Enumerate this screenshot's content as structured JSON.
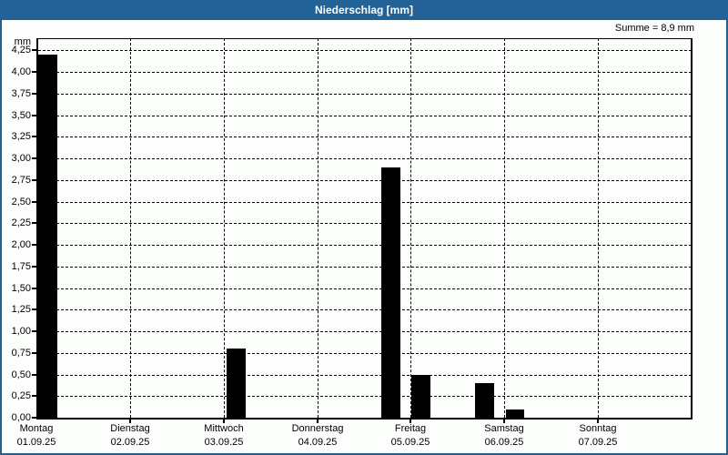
{
  "window": {
    "title": "Niederschlag [mm]",
    "summary": "Summe = 8,9 mm"
  },
  "colors": {
    "titlebar": "#226296",
    "border": "#226296",
    "background": "#fcfefc",
    "bar": "#000000",
    "grid": "#000000",
    "text": "#000000",
    "title_text": "#ffffff"
  },
  "chart_data": {
    "type": "bar",
    "title": "Niederschlag [mm]",
    "ylabel": "mm",
    "sum_label": "Summe = 8,9 mm",
    "total_mm": 8.9,
    "grid": "dashed",
    "ylim": [
      0,
      4.39
    ],
    "ytick_step": 0.25,
    "yticks": [
      {
        "value": 0.0,
        "label": "0,00"
      },
      {
        "value": 0.25,
        "label": "0,25"
      },
      {
        "value": 0.5,
        "label": "0,50"
      },
      {
        "value": 0.75,
        "label": "0,75"
      },
      {
        "value": 1.0,
        "label": "1,00"
      },
      {
        "value": 1.25,
        "label": "1,25"
      },
      {
        "value": 1.5,
        "label": "1,50"
      },
      {
        "value": 1.75,
        "label": "1,75"
      },
      {
        "value": 2.0,
        "label": "2,00"
      },
      {
        "value": 2.25,
        "label": "2,25"
      },
      {
        "value": 2.5,
        "label": "2,50"
      },
      {
        "value": 2.75,
        "label": "2,75"
      },
      {
        "value": 3.0,
        "label": "3,00"
      },
      {
        "value": 3.25,
        "label": "3,25"
      },
      {
        "value": 3.5,
        "label": "3,50"
      },
      {
        "value": 3.75,
        "label": "3,75"
      },
      {
        "value": 4.0,
        "label": "4,00"
      },
      {
        "value": 4.25,
        "label": "4,25"
      }
    ],
    "days": [
      {
        "name": "Montag",
        "date": "01.09.25"
      },
      {
        "name": "Dienstag",
        "date": "02.09.25"
      },
      {
        "name": "Mittwoch",
        "date": "03.09.25"
      },
      {
        "name": "Donnerstag",
        "date": "04.09.25"
      },
      {
        "name": "Freitag",
        "date": "05.09.25"
      },
      {
        "name": "Samstag",
        "date": "06.09.25"
      },
      {
        "name": "Sonntag",
        "date": "07.09.25"
      }
    ],
    "bars": [
      {
        "day": "Montag",
        "t": 0.019,
        "dur": 0.204,
        "value": 4.2
      },
      {
        "day": "Mittwoch",
        "t": 2.029,
        "dur": 0.204,
        "value": 0.8
      },
      {
        "day": "Donnerstag",
        "t": 3.689,
        "dur": 0.204,
        "value": 2.9
      },
      {
        "day": "Freitag",
        "t": 4.01,
        "dur": 0.204,
        "value": 0.5
      },
      {
        "day": "Freitag",
        "t": 4.689,
        "dur": 0.204,
        "value": 0.4
      },
      {
        "day": "Samstag",
        "t": 5.019,
        "dur": 0.194,
        "value": 0.1
      }
    ]
  }
}
